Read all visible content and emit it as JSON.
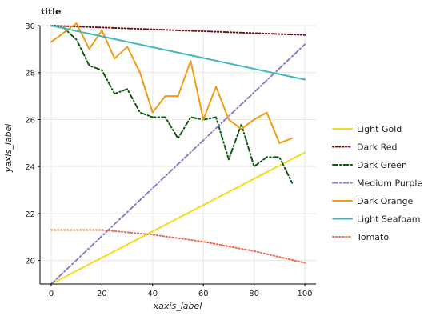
{
  "chart_data": {
    "type": "line",
    "title": "title",
    "xlabel": "xaxis_label",
    "ylabel": "yaxis_label",
    "xlim": [
      0,
      100
    ],
    "ylim": [
      19,
      30
    ],
    "xticks": [
      0,
      20,
      40,
      60,
      80,
      100
    ],
    "yticks": [
      20,
      22,
      24,
      26,
      28,
      30
    ],
    "grid": true,
    "legend_position": "right",
    "series": [
      {
        "name": "Light Gold",
        "color": "#f2dd1c",
        "dash": "solid",
        "x": [
          0,
          100
        ],
        "y": [
          19.0,
          24.6
        ]
      },
      {
        "name": "Dark Red",
        "color": "#7e0b12",
        "dash": "dotted",
        "x": [
          0,
          100
        ],
        "y": [
          30.0,
          29.6
        ]
      },
      {
        "name": "Dark Green",
        "color": "#0e5a0e",
        "dash": "dashdot",
        "x": [
          0,
          5,
          10,
          15,
          20,
          25,
          30,
          35,
          40,
          45,
          50,
          55,
          60,
          65,
          70,
          75,
          80,
          85,
          90,
          95
        ],
        "y": [
          30.0,
          29.9,
          29.4,
          28.3,
          28.1,
          27.1,
          27.3,
          26.3,
          26.1,
          26.1,
          25.2,
          26.1,
          26.0,
          26.1,
          24.3,
          25.8,
          24.0,
          24.4,
          24.4,
          23.3
        ]
      },
      {
        "name": "Medium Purple",
        "color": "#8e7cc3",
        "dash": "dashdot",
        "x": [
          0,
          100
        ],
        "y": [
          19.0,
          29.2
        ]
      },
      {
        "name": "Dark Orange",
        "color": "#f39c12",
        "dash": "solid",
        "x": [
          0,
          10,
          15,
          20,
          25,
          30,
          35,
          40,
          45,
          50,
          55,
          60,
          65,
          70,
          75,
          80,
          85,
          90,
          95
        ],
        "y": [
          29.3,
          30.1,
          29.0,
          29.8,
          28.6,
          29.1,
          28.0,
          26.3,
          27.0,
          27.0,
          28.5,
          26.0,
          27.4,
          26.0,
          25.6,
          26.0,
          26.3,
          25.0,
          25.2
        ]
      },
      {
        "name": "Light Seafoam",
        "color": "#3fbabf",
        "dash": "solid",
        "x": [
          0,
          100
        ],
        "y": [
          30.0,
          27.7
        ]
      },
      {
        "name": "Tomato",
        "color": "#ee6a50",
        "dash": "dotted",
        "x": [
          0,
          20,
          40,
          60,
          80,
          100
        ],
        "y": [
          21.3,
          21.3,
          21.1,
          20.8,
          20.4,
          19.9
        ]
      }
    ]
  }
}
